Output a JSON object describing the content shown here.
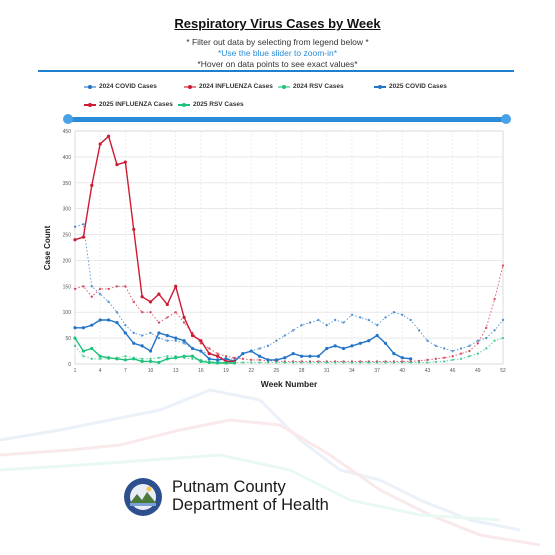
{
  "header": {
    "title": "Respiratory Virus Cases by Week",
    "note_1": "* Filter out data by selecting from legend below *",
    "note_2": "*Use the blue slider to zoom-in*",
    "note_3": "*Hover on data points to see exact values*"
  },
  "colors": {
    "covid": "#2274c8",
    "influenza": "#cf1a33",
    "rsv": "#1ec27a",
    "accent": "#2a8cd8"
  },
  "chart_data": {
    "type": "line",
    "xlabel": "Week Number",
    "ylabel": "Case Count",
    "xlim": [
      1,
      52
    ],
    "ylim": [
      0,
      450
    ],
    "x_ticks": [
      1,
      4,
      7,
      10,
      13,
      16,
      19,
      22,
      25,
      28,
      31,
      34,
      37,
      40,
      43,
      46,
      49,
      52
    ],
    "y_ticks": [
      0,
      50,
      100,
      150,
      200,
      250,
      300,
      350,
      400,
      450
    ],
    "grid": true,
    "legend_position": "top",
    "series": [
      {
        "name": "2024 COVID Cases",
        "style": "dotted",
        "color": "#2274c8",
        "x": [
          1,
          2,
          3,
          4,
          5,
          6,
          7,
          8,
          9,
          10,
          11,
          12,
          13,
          14,
          15,
          16,
          17,
          18,
          19,
          20,
          21,
          22,
          23,
          24,
          25,
          26,
          27,
          28,
          29,
          30,
          31,
          32,
          33,
          34,
          35,
          36,
          37,
          38,
          39,
          40,
          41,
          42,
          43,
          44,
          45,
          46,
          47,
          48,
          49,
          50,
          51,
          52
        ],
        "values": [
          265,
          270,
          150,
          135,
          120,
          100,
          75,
          60,
          55,
          60,
          50,
          45,
          45,
          40,
          30,
          25,
          20,
          15,
          10,
          10,
          20,
          25,
          30,
          35,
          45,
          55,
          65,
          75,
          80,
          85,
          75,
          85,
          80,
          95,
          90,
          85,
          75,
          90,
          100,
          95,
          85,
          65,
          45,
          35,
          30,
          25,
          30,
          35,
          45,
          50,
          65,
          85
        ]
      },
      {
        "name": "2024 INFLUENZA Cases",
        "style": "dotted",
        "color": "#cf1a33",
        "x": [
          1,
          2,
          3,
          4,
          5,
          6,
          7,
          8,
          9,
          10,
          11,
          12,
          13,
          14,
          15,
          16,
          17,
          18,
          19,
          20,
          21,
          22,
          23,
          24,
          25,
          26,
          27,
          28,
          29,
          30,
          31,
          32,
          33,
          34,
          35,
          36,
          37,
          38,
          39,
          40,
          41,
          42,
          43,
          44,
          45,
          46,
          47,
          48,
          49,
          50,
          51,
          52
        ],
        "values": [
          145,
          150,
          130,
          145,
          145,
          150,
          150,
          120,
          100,
          100,
          80,
          90,
          100,
          80,
          60,
          40,
          30,
          20,
          15,
          12,
          10,
          8,
          8,
          6,
          6,
          5,
          5,
          5,
          5,
          5,
          5,
          5,
          5,
          5,
          5,
          5,
          5,
          5,
          5,
          5,
          5,
          6,
          8,
          10,
          12,
          15,
          20,
          25,
          40,
          70,
          125,
          190
        ]
      },
      {
        "name": "2024 RSV Cases",
        "style": "dotted",
        "color": "#1ec27a",
        "x": [
          1,
          2,
          3,
          4,
          5,
          6,
          7,
          8,
          9,
          10,
          11,
          12,
          13,
          14,
          15,
          16,
          17,
          18,
          19,
          20,
          21,
          22,
          23,
          24,
          25,
          26,
          27,
          28,
          29,
          30,
          31,
          32,
          33,
          34,
          35,
          36,
          37,
          38,
          39,
          40,
          41,
          42,
          43,
          44,
          45,
          46,
          47,
          48,
          49,
          50,
          51,
          52
        ],
        "values": [
          35,
          15,
          10,
          10,
          10,
          12,
          15,
          12,
          10,
          10,
          12,
          15,
          15,
          12,
          10,
          8,
          5,
          4,
          3,
          3,
          3,
          3,
          3,
          3,
          3,
          3,
          3,
          3,
          3,
          3,
          3,
          3,
          3,
          3,
          3,
          3,
          3,
          3,
          3,
          3,
          3,
          3,
          3,
          4,
          5,
          8,
          10,
          15,
          20,
          30,
          45,
          50
        ]
      },
      {
        "name": "2025 COVID Cases",
        "style": "solid",
        "color": "#2274c8",
        "x": [
          1,
          2,
          3,
          4,
          5,
          6,
          7,
          8,
          9,
          10,
          11,
          12,
          13,
          14,
          15,
          16,
          17,
          18,
          19,
          20,
          21,
          22,
          23,
          24,
          25,
          26,
          27,
          28,
          29,
          30,
          31,
          32,
          33,
          34,
          35,
          36,
          37,
          38,
          39,
          40,
          41
        ],
        "values": [
          70,
          70,
          75,
          85,
          85,
          80,
          60,
          40,
          35,
          25,
          60,
          55,
          50,
          45,
          30,
          25,
          10,
          8,
          10,
          5,
          20,
          25,
          15,
          8,
          8,
          12,
          20,
          15,
          15,
          15,
          30,
          35,
          30,
          35,
          40,
          45,
          55,
          40,
          20,
          12,
          10
        ]
      },
      {
        "name": "2025 INFLUENZA Cases",
        "style": "solid",
        "color": "#cf1a33",
        "x": [
          1,
          2,
          3,
          4,
          5,
          6,
          7,
          8,
          9,
          10,
          11,
          12,
          13,
          14,
          15,
          16,
          17,
          18,
          19,
          20
        ],
        "values": [
          240,
          245,
          345,
          425,
          440,
          385,
          390,
          260,
          130,
          120,
          135,
          115,
          150,
          90,
          55,
          45,
          20,
          15,
          5,
          5
        ]
      },
      {
        "name": "2025 RSV Cases",
        "style": "solid",
        "color": "#1ec27a",
        "x": [
          1,
          2,
          3,
          4,
          5,
          6,
          7,
          8,
          9,
          10,
          11,
          12,
          13,
          14,
          15,
          16,
          17,
          18,
          19,
          20
        ],
        "values": [
          50,
          25,
          30,
          15,
          12,
          10,
          8,
          10,
          5,
          5,
          3,
          10,
          12,
          15,
          15,
          5,
          3,
          2,
          2,
          2
        ]
      }
    ]
  },
  "org": {
    "line_1": "Putnam County",
    "line_2": "Department of Health"
  }
}
